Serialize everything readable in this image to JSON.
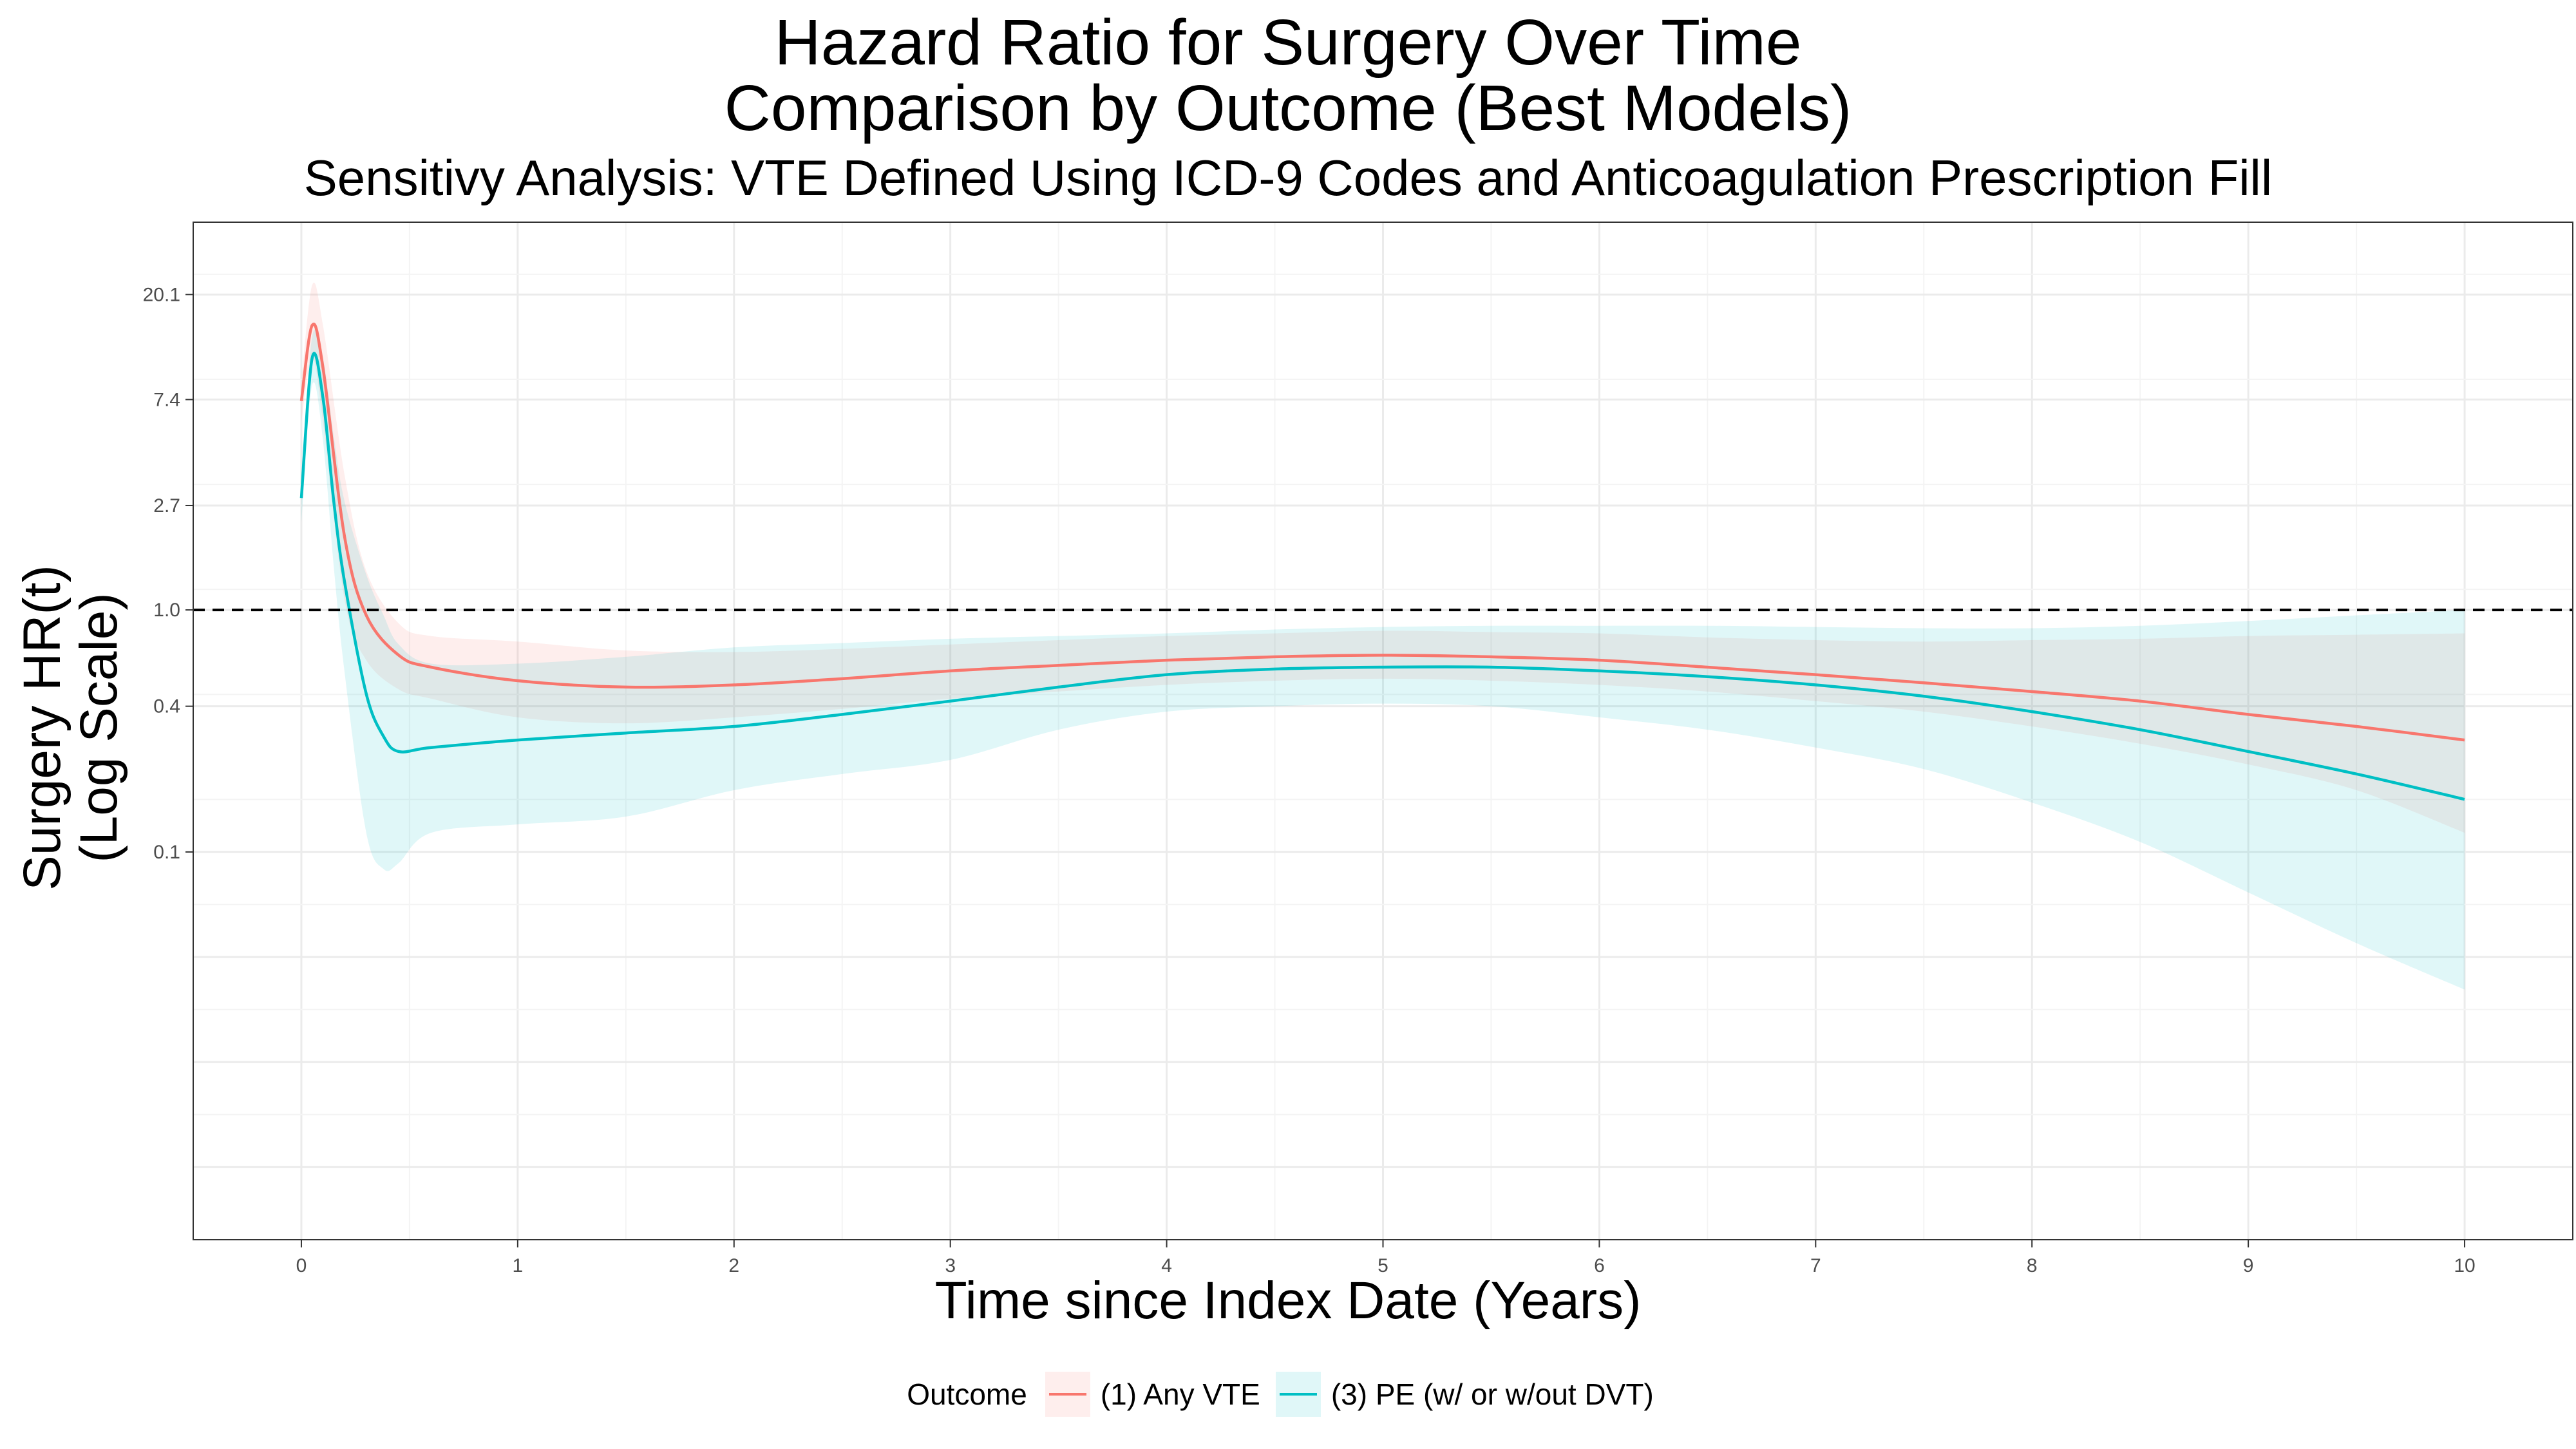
{
  "title_lines": [
    "Hazard Ratio for Surgery Over Time",
    "Comparison by Outcome (Best Models)"
  ],
  "subtitle": "Sensitivy Analysis: VTE Defined Using ICD-9 Codes and Anticoagulation Prescription Fill",
  "legend": {
    "title": "Outcome"
  },
  "chart_data": {
    "type": "line",
    "xlabel": "Time since Index Date (Years)",
    "ylabel_lines": [
      "Surgery HR(t)",
      "(Log Scale)"
    ],
    "x_scale": "linear",
    "y_scale": "log",
    "xlim": [
      -0.5,
      10.5
    ],
    "ylim": [
      0.0025,
      40
    ],
    "x_ticks": [
      0,
      1,
      2,
      3,
      4,
      5,
      6,
      7,
      8,
      9,
      10
    ],
    "y_ticks": [
      0.1,
      0.4,
      1.0,
      2.7,
      7.4,
      20.1
    ],
    "y_tick_labels": [
      "0.1",
      "0.4",
      "1.0",
      "2.7",
      "7.4",
      "20.1"
    ],
    "reference_line": {
      "y": 1.0,
      "style": "dashed",
      "color": "#000000"
    },
    "grid": true,
    "legend_position": "bottom",
    "series": [
      {
        "name": "(1) Any VTE",
        "color": "#F8766D",
        "x": [
          0,
          0.05,
          0.1,
          0.2,
          0.3,
          0.45,
          0.6,
          1,
          1.5,
          2,
          2.5,
          3,
          3.5,
          4,
          4.5,
          5,
          5.5,
          6,
          6.5,
          7,
          7.5,
          8,
          8.5,
          9,
          9.5,
          10
        ],
        "y": [
          7.3,
          15,
          10,
          2.0,
          0.95,
          0.65,
          0.58,
          0.51,
          0.48,
          0.49,
          0.52,
          0.56,
          0.59,
          0.62,
          0.64,
          0.65,
          0.64,
          0.62,
          0.58,
          0.54,
          0.5,
          0.46,
          0.42,
          0.37,
          0.33,
          0.29
        ],
        "lower": [
          6.0,
          11,
          6,
          1.1,
          0.62,
          0.47,
          0.43,
          0.36,
          0.34,
          0.36,
          0.39,
          0.43,
          0.46,
          0.49,
          0.51,
          0.52,
          0.51,
          0.49,
          0.46,
          0.42,
          0.38,
          0.33,
          0.28,
          0.23,
          0.18,
          0.12
        ],
        "upper": [
          8.8,
          22,
          15,
          3.6,
          1.45,
          0.88,
          0.78,
          0.74,
          0.68,
          0.67,
          0.69,
          0.72,
          0.75,
          0.78,
          0.8,
          0.82,
          0.81,
          0.8,
          0.77,
          0.75,
          0.74,
          0.75,
          0.76,
          0.78,
          0.79,
          0.8
        ]
      },
      {
        "name": "(3) PE (w/ or w/out DVT)",
        "color": "#00BFC4",
        "x": [
          0,
          0.05,
          0.1,
          0.15,
          0.2,
          0.3,
          0.38,
          0.45,
          0.6,
          1,
          1.5,
          2,
          2.5,
          3,
          3.5,
          4,
          4.5,
          5,
          5.5,
          6,
          6.5,
          7,
          7.5,
          8,
          8.5,
          9,
          9.5,
          10
        ],
        "y": [
          2.9,
          11,
          7.5,
          2.8,
          1.3,
          0.45,
          0.3,
          0.26,
          0.27,
          0.29,
          0.31,
          0.33,
          0.37,
          0.42,
          0.48,
          0.54,
          0.57,
          0.58,
          0.58,
          0.56,
          0.53,
          0.49,
          0.44,
          0.38,
          0.32,
          0.26,
          0.21,
          0.165
        ],
        "lower": [
          2.3,
          8.5,
          5,
          1.5,
          0.55,
          0.12,
          0.085,
          0.09,
          0.12,
          0.13,
          0.14,
          0.18,
          0.21,
          0.24,
          0.32,
          0.38,
          0.4,
          0.41,
          0.4,
          0.36,
          0.32,
          0.27,
          0.22,
          0.16,
          0.11,
          0.068,
          0.042,
          0.027
        ],
        "upper": [
          3.6,
          13.5,
          11,
          5.2,
          2.8,
          1.4,
          0.95,
          0.72,
          0.6,
          0.6,
          0.64,
          0.7,
          0.73,
          0.76,
          0.78,
          0.8,
          0.83,
          0.85,
          0.86,
          0.86,
          0.86,
          0.85,
          0.84,
          0.84,
          0.86,
          0.9,
          0.95,
          1.0
        ]
      }
    ]
  }
}
